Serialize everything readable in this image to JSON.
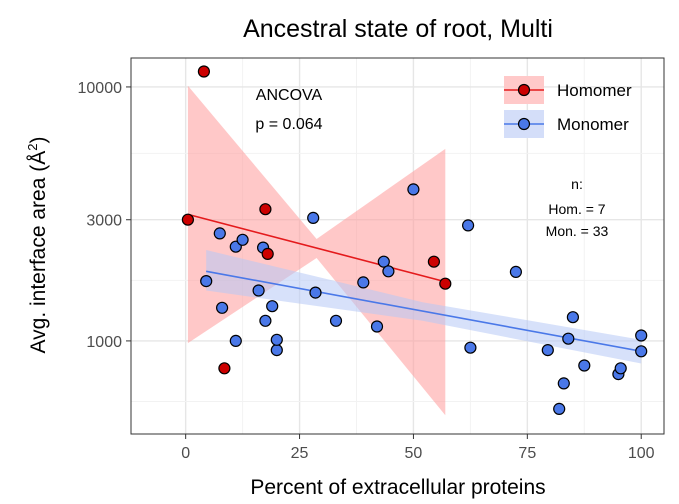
{
  "chart_data": {
    "type": "scatter",
    "title": "Ancestral state of root, Multi",
    "xlabel": "Percent of extracellular proteins",
    "ylabel": "Avg. interface area (Å",
    "ylabel_sup": "2",
    "ylabel_close": ")",
    "y_scale": "log10",
    "xlim": [
      -12,
      105
    ],
    "ylim": [
      430,
      13000
    ],
    "x_ticks": [
      0,
      25,
      50,
      75,
      100
    ],
    "x_tick_labels": [
      "0",
      "25",
      "50",
      "75",
      "100"
    ],
    "y_ticks": [
      1000,
      3000,
      10000
    ],
    "y_tick_labels": [
      "1000",
      "3000",
      "10000"
    ],
    "grid": true,
    "legend_position": "top-right",
    "annotation": {
      "title": "ANCOVA",
      "text": "p = 0.064"
    },
    "counts": {
      "label": "n:",
      "homomer": "Hom. = 7",
      "monomer": "Mon. = 33"
    },
    "series": [
      {
        "name": "Homomer",
        "color": "#cc0000",
        "line_color": "#e41a1c",
        "band_color": "#ff9a9a",
        "points": [
          [
            4,
            11500
          ],
          [
            0.5,
            3000
          ],
          [
            17.5,
            3300
          ],
          [
            18,
            2200
          ],
          [
            8.5,
            780
          ],
          [
            54.5,
            2050
          ],
          [
            57,
            1680
          ]
        ],
        "fit": {
          "x": [
            0.5,
            57
          ],
          "y": [
            3150,
            1710
          ],
          "lower": [
            980,
            510
          ],
          "upper": [
            10100,
            5700
          ],
          "x_mid": 28.75,
          "lower_mid": 2120,
          "upper_mid": 2520
        }
      },
      {
        "name": "Monomer",
        "color": "#4a78e8",
        "line_color": "#4a78e8",
        "band_color": "#b7c9f5",
        "points": [
          [
            4.5,
            1720
          ],
          [
            7.5,
            2650
          ],
          [
            8,
            1350
          ],
          [
            11,
            2350
          ],
          [
            11,
            1000
          ],
          [
            12.5,
            2500
          ],
          [
            16,
            1580
          ],
          [
            17,
            2330
          ],
          [
            17.5,
            1200
          ],
          [
            19,
            1370
          ],
          [
            20,
            920
          ],
          [
            20,
            1010
          ],
          [
            28,
            3050
          ],
          [
            28.5,
            1550
          ],
          [
            33,
            1200
          ],
          [
            39,
            1700
          ],
          [
            42,
            1140
          ],
          [
            43.5,
            2050
          ],
          [
            44.5,
            1880
          ],
          [
            50,
            3950
          ],
          [
            62,
            2850
          ],
          [
            62.5,
            940
          ],
          [
            72.5,
            1870
          ],
          [
            79.5,
            920
          ],
          [
            82,
            540
          ],
          [
            83,
            680
          ],
          [
            84,
            1020
          ],
          [
            85,
            1240
          ],
          [
            87.5,
            800
          ],
          [
            95,
            740
          ],
          [
            95.5,
            780
          ],
          [
            100,
            910
          ],
          [
            100,
            1050
          ]
        ],
        "fit": {
          "x": [
            4.5,
            100
          ],
          "y": [
            1880,
            910
          ],
          "lower": [
            1580,
            815
          ],
          "upper": [
            2280,
            1010
          ],
          "x_mid": 52,
          "lower_mid": 1200,
          "upper_mid": 1420
        }
      }
    ]
  }
}
